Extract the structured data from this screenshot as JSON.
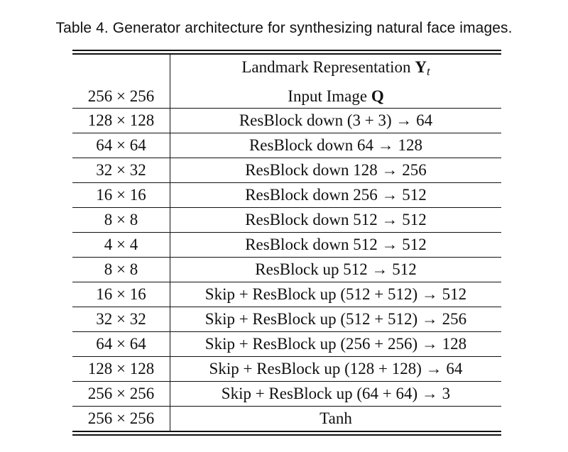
{
  "caption": "Table 4.  Generator architecture for synthesizing natural face images.",
  "header": {
    "row1_text": "Landmark Representation ",
    "row1_symbol": "Y",
    "row1_subscript": "t",
    "row2_res": "256 × 256",
    "row2_text": "Input Image ",
    "row2_symbol": "Q"
  },
  "rows": [
    {
      "res": "128 × 128",
      "layer": "ResBlock down (3 + 3) → 64"
    },
    {
      "res": "64 × 64",
      "layer": "ResBlock down 64 → 128"
    },
    {
      "res": "32 × 32",
      "layer": "ResBlock down 128 → 256"
    },
    {
      "res": "16 × 16",
      "layer": "ResBlock down 256 → 512"
    },
    {
      "res": "8 × 8",
      "layer": "ResBlock down 512 → 512"
    },
    {
      "res": "4 × 4",
      "layer": "ResBlock down 512 → 512"
    },
    {
      "res": "8 × 8",
      "layer": "ResBlock up 512 → 512"
    },
    {
      "res": "16 × 16",
      "layer": "Skip + ResBlock up (512 + 512) → 512"
    },
    {
      "res": "32 × 32",
      "layer": "Skip + ResBlock up (512 + 512) → 256"
    },
    {
      "res": "64 × 64",
      "layer": "Skip + ResBlock up (256 + 256) → 128"
    },
    {
      "res": "128 × 128",
      "layer": "Skip + ResBlock up (128 + 128) → 64"
    },
    {
      "res": "256 × 256",
      "layer": "Skip + ResBlock up (64 + 64) → 3"
    },
    {
      "res": "256 × 256",
      "layer": "Tanh"
    }
  ]
}
